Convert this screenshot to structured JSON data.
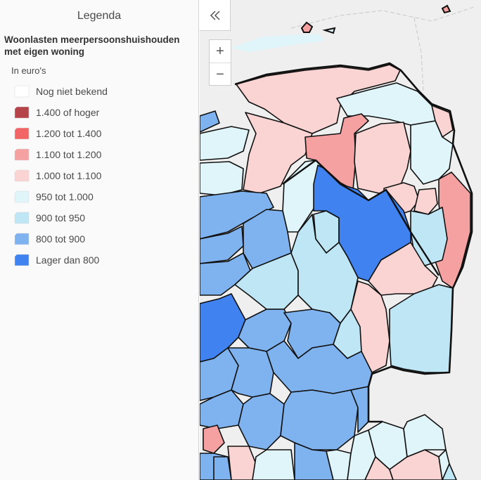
{
  "legend": {
    "title": "Legenda",
    "layer_title": "Woonlasten meerpersoonshuishouden met eigen woning",
    "unit": "In euro's",
    "items": [
      {
        "label": "Nog niet bekend",
        "color": "#ffffff"
      },
      {
        "label": "1.400 of hoger",
        "color": "#b5434a"
      },
      {
        "label": "1.200 tot 1.400",
        "color": "#f26566"
      },
      {
        "label": "1.100 tot 1.200",
        "color": "#f5a0a1"
      },
      {
        "label": "1.000 tot 1.100",
        "color": "#fad3d3"
      },
      {
        "label": "950 tot 1.000",
        "color": "#dff5fa"
      },
      {
        "label": "900 tot 950",
        "color": "#bfe6f5"
      },
      {
        "label": "800 tot 900",
        "color": "#7fb3ef"
      },
      {
        "label": "Lager dan 800",
        "color": "#3f82f0"
      }
    ]
  },
  "controls": {
    "collapse_icon": "double-chevron-left-icon",
    "zoom_in_label": "+",
    "zoom_out_label": "−"
  },
  "map": {
    "background_color": "#efefef",
    "water_color": "#dff5fa",
    "border_color": "#111111"
  }
}
